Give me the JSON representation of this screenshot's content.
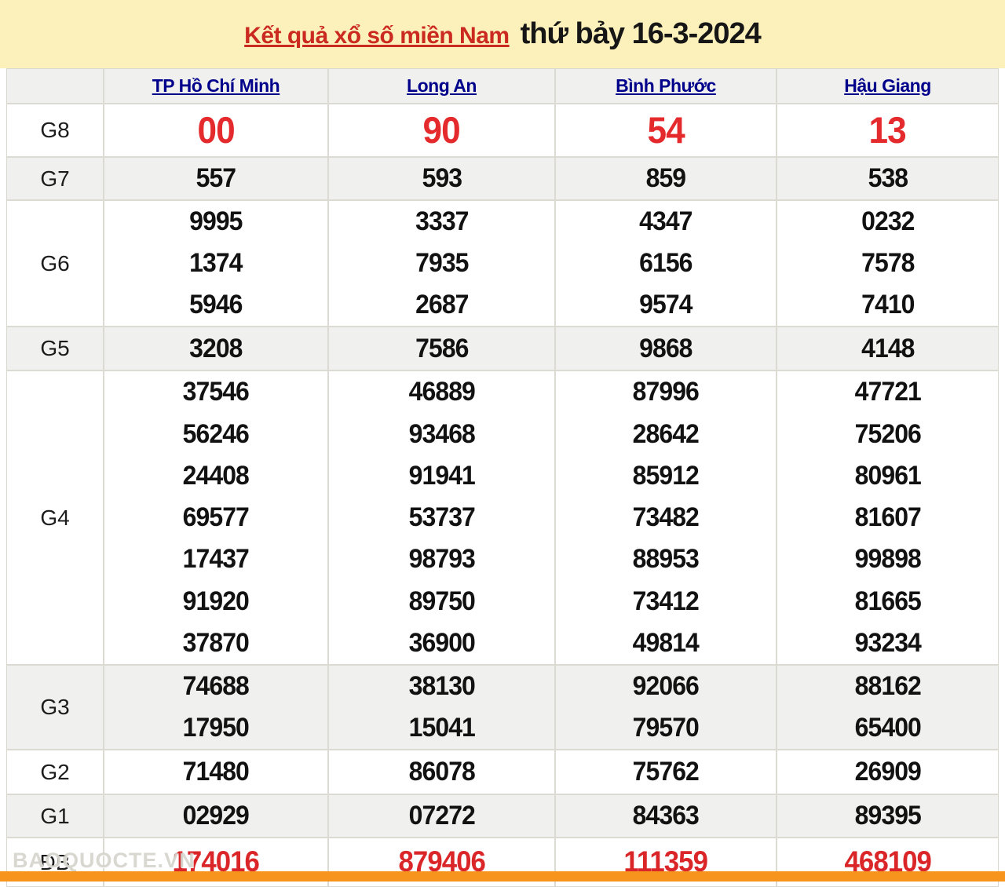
{
  "title": {
    "highlight": "Kết quả xổ số miền Nam",
    "rest": "thứ bảy 16-3-2024"
  },
  "columns": [
    "TP Hồ Chí Minh",
    "Long An",
    "Bình Phước",
    "Hậu Giang"
  ],
  "rows": [
    {
      "label": "G8",
      "style": "red-large",
      "values": [
        [
          "00"
        ],
        [
          "90"
        ],
        [
          "54"
        ],
        [
          "13"
        ]
      ]
    },
    {
      "label": "G7",
      "style": "normal",
      "values": [
        [
          "557"
        ],
        [
          "593"
        ],
        [
          "859"
        ],
        [
          "538"
        ]
      ]
    },
    {
      "label": "G6",
      "style": "normal",
      "values": [
        [
          "9995",
          "1374",
          "5946"
        ],
        [
          "3337",
          "7935",
          "2687"
        ],
        [
          "4347",
          "6156",
          "9574"
        ],
        [
          "0232",
          "7578",
          "7410"
        ]
      ]
    },
    {
      "label": "G5",
      "style": "normal",
      "values": [
        [
          "3208"
        ],
        [
          "7586"
        ],
        [
          "9868"
        ],
        [
          "4148"
        ]
      ]
    },
    {
      "label": "G4",
      "style": "normal",
      "values": [
        [
          "37546",
          "56246",
          "24408",
          "69577",
          "17437",
          "91920",
          "37870"
        ],
        [
          "46889",
          "93468",
          "91941",
          "53737",
          "98793",
          "89750",
          "36900"
        ],
        [
          "87996",
          "28642",
          "85912",
          "73482",
          "88953",
          "73412",
          "49814"
        ],
        [
          "47721",
          "75206",
          "80961",
          "81607",
          "99898",
          "81665",
          "93234"
        ]
      ]
    },
    {
      "label": "G3",
      "style": "normal",
      "values": [
        [
          "74688",
          "17950"
        ],
        [
          "38130",
          "15041"
        ],
        [
          "92066",
          "79570"
        ],
        [
          "88162",
          "65400"
        ]
      ]
    },
    {
      "label": "G2",
      "style": "normal",
      "values": [
        [
          "71480"
        ],
        [
          "86078"
        ],
        [
          "75762"
        ],
        [
          "26909"
        ]
      ]
    },
    {
      "label": "G1",
      "style": "normal",
      "values": [
        [
          "02929"
        ],
        [
          "07272"
        ],
        [
          "84363"
        ],
        [
          "89395"
        ]
      ]
    },
    {
      "label": "ĐB",
      "style": "red",
      "values": [
        [
          "174016"
        ],
        [
          "879406"
        ],
        [
          "111359"
        ],
        [
          "468109"
        ]
      ]
    }
  ],
  "watermark": "BAOQUOCTE.VN",
  "colors": {
    "band_yellow": "#fcf1bb",
    "title_red": "#cb2a21",
    "header_blue": "#00008b",
    "prize_red": "#e42a2c",
    "bar_orange": "#f7941e"
  }
}
